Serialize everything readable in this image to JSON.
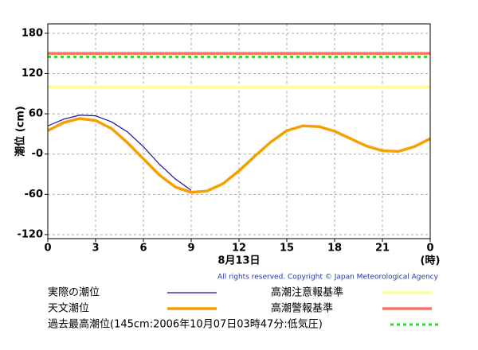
{
  "chart_data": {
    "type": "line",
    "y_label": "潮位 (cm)",
    "x_label": "8月13日",
    "x_unit": "(時)",
    "copyright": "All rights reserved. Copyright © Japan Meteorological Agency",
    "xlim": [
      0,
      24
    ],
    "xticks": [
      0,
      3,
      6,
      9,
      12,
      15,
      18,
      21,
      {
        "value": 24,
        "label": "0"
      }
    ],
    "ylim": [
      -126,
      194
    ],
    "yticks": [
      180,
      120,
      60,
      {
        "value": 0,
        "label": "-0"
      },
      -60,
      -120
    ],
    "grid": true,
    "series": [
      {
        "name": "実際の潮位",
        "color": "#1a10a0",
        "width": 1.2,
        "x": [
          0,
          1,
          2,
          3,
          4,
          5,
          6,
          7,
          8,
          9
        ],
        "values": [
          42,
          52,
          58,
          57,
          48,
          33,
          11,
          -15,
          -37,
          -54
        ]
      },
      {
        "name": "天文潮位",
        "color": "#f5a000",
        "width": 3.5,
        "x": [
          0,
          1,
          2,
          3,
          4,
          5,
          6,
          7,
          8,
          9,
          10,
          11,
          12,
          13,
          14,
          15,
          16,
          17,
          18,
          19,
          20,
          21,
          22,
          23,
          24
        ],
        "values": [
          35,
          47,
          53,
          50,
          38,
          17,
          -7,
          -31,
          -49,
          -57,
          -55,
          -44,
          -25,
          -3,
          18,
          35,
          42,
          41,
          34,
          23,
          12,
          5,
          4,
          11,
          23
        ]
      }
    ],
    "thresholds": [
      {
        "name": "高潮注意報基準",
        "color": "#ffff99",
        "value": 100,
        "width": 3.5
      },
      {
        "name": "高潮警報基準",
        "color": "#ff7060",
        "value": 150,
        "width": 3.5
      },
      {
        "name": "過去最高潮位(145cm:2006年10月07日03時47分:低気圧)",
        "color": "#22dd22",
        "value": 145,
        "width": 3,
        "dashed": true
      }
    ]
  }
}
